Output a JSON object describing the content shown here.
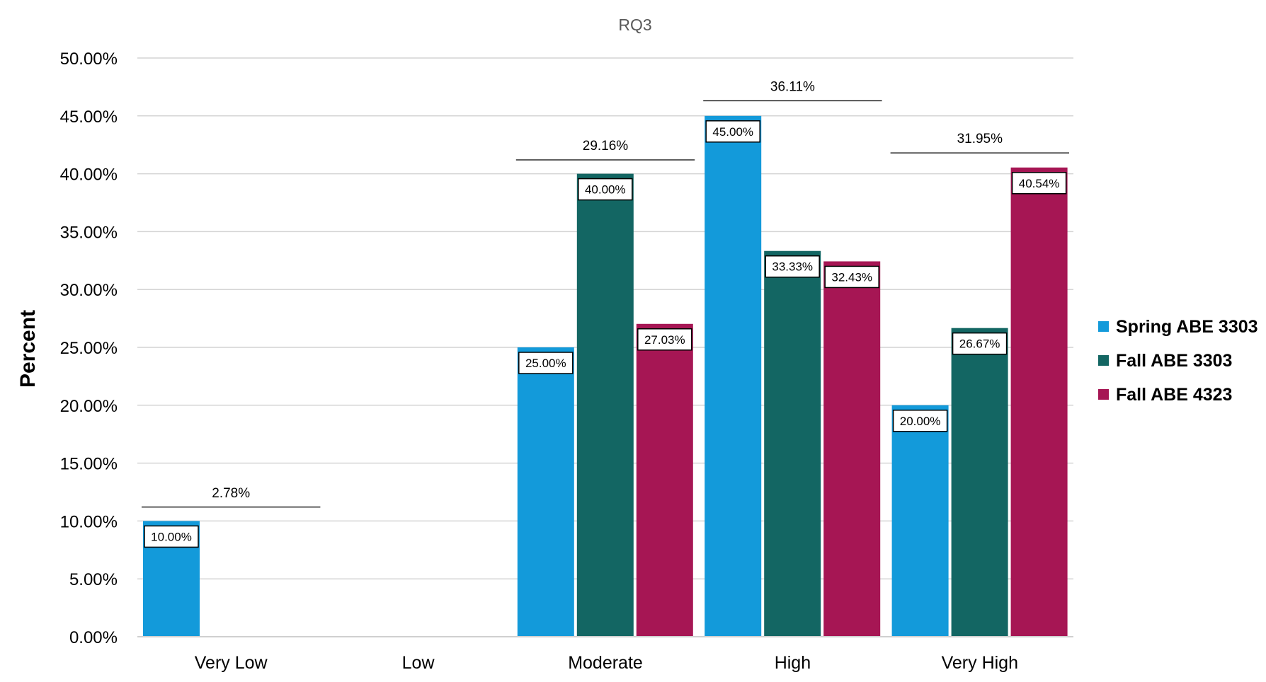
{
  "chart_data": {
    "type": "bar",
    "title": "RQ3",
    "xlabel": "",
    "ylabel": "Percent",
    "ylim": [
      0,
      50
    ],
    "yticks": [
      "0.00%",
      "5.00%",
      "10.00%",
      "15.00%",
      "20.00%",
      "25.00%",
      "30.00%",
      "35.00%",
      "40.00%",
      "45.00%",
      "50.00%"
    ],
    "grid": true,
    "legend_position": "right",
    "categories": [
      "Very Low",
      "Low",
      "Moderate",
      "High",
      "Very High"
    ],
    "series": [
      {
        "name": "Spring ABE 3303",
        "color": "#139ADA",
        "values": [
          10.0,
          null,
          25.0,
          45.0,
          20.0
        ],
        "labels": [
          "10.00%",
          "",
          "25.00%",
          "45.00%",
          "20.00%"
        ]
      },
      {
        "name": "Fall ABE 3303",
        "color": "#136663",
        "values": [
          null,
          null,
          40.0,
          33.33,
          26.67
        ],
        "labels": [
          "",
          "",
          "40.00%",
          "33.33%",
          "26.67%"
        ]
      },
      {
        "name": "Fall ABE 4323",
        "color": "#A61654",
        "values": [
          null,
          null,
          27.03,
          32.43,
          40.54
        ],
        "labels": [
          "",
          "",
          "27.03%",
          "32.43%",
          "40.54%"
        ]
      }
    ],
    "group_annotations": [
      {
        "category": "Very Low",
        "value": 11.2,
        "label": "2.78%"
      },
      {
        "category": "Moderate",
        "value": 41.2,
        "label": "29.16%"
      },
      {
        "category": "High",
        "value": 46.3,
        "label": "36.11%"
      },
      {
        "category": "Very High",
        "value": 41.8,
        "label": "31.95%"
      }
    ]
  }
}
